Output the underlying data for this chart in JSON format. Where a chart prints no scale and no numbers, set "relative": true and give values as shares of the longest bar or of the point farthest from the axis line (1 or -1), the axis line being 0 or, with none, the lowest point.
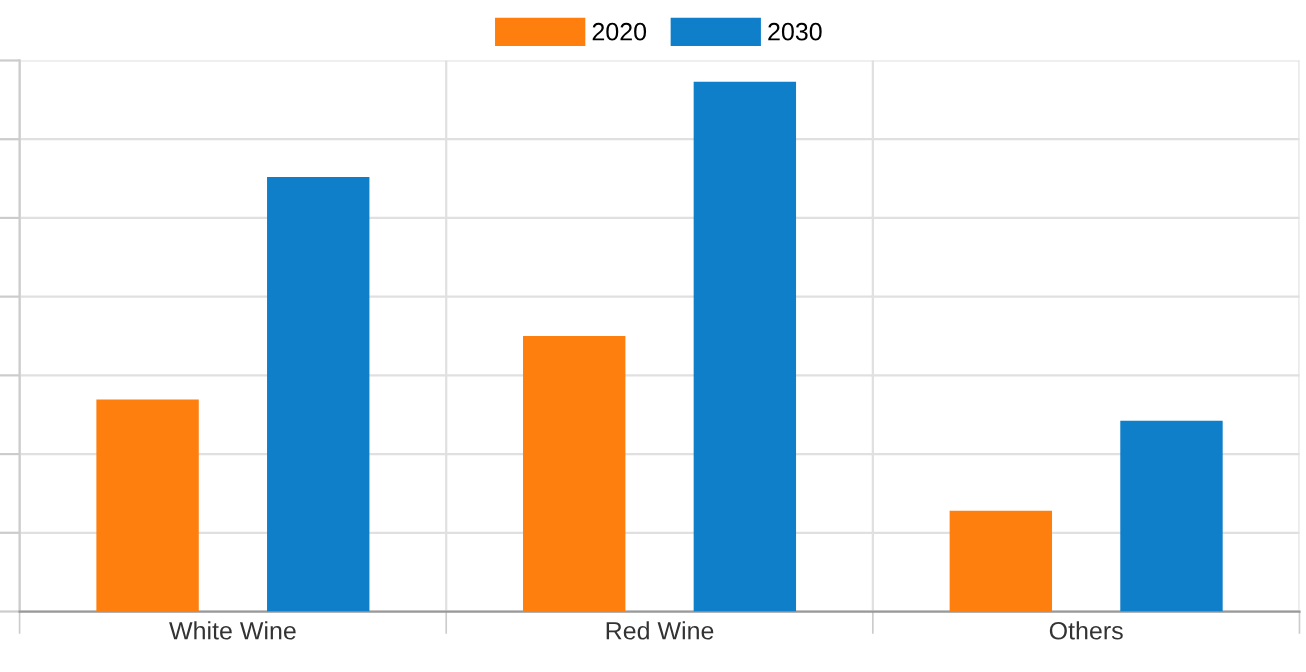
{
  "chart_data": {
    "type": "bar",
    "relative": true,
    "categories": [
      "White Wine",
      "Red Wine",
      "Others"
    ],
    "series": [
      {
        "name": "2020",
        "color": "#ff7f0e",
        "values": [
          0.4,
          0.52,
          0.19
        ]
      },
      {
        "name": "2030",
        "color": "#0f7fca",
        "values": [
          0.82,
          1,
          0.36
        ]
      }
    ],
    "grid": true,
    "legend": "top"
  }
}
